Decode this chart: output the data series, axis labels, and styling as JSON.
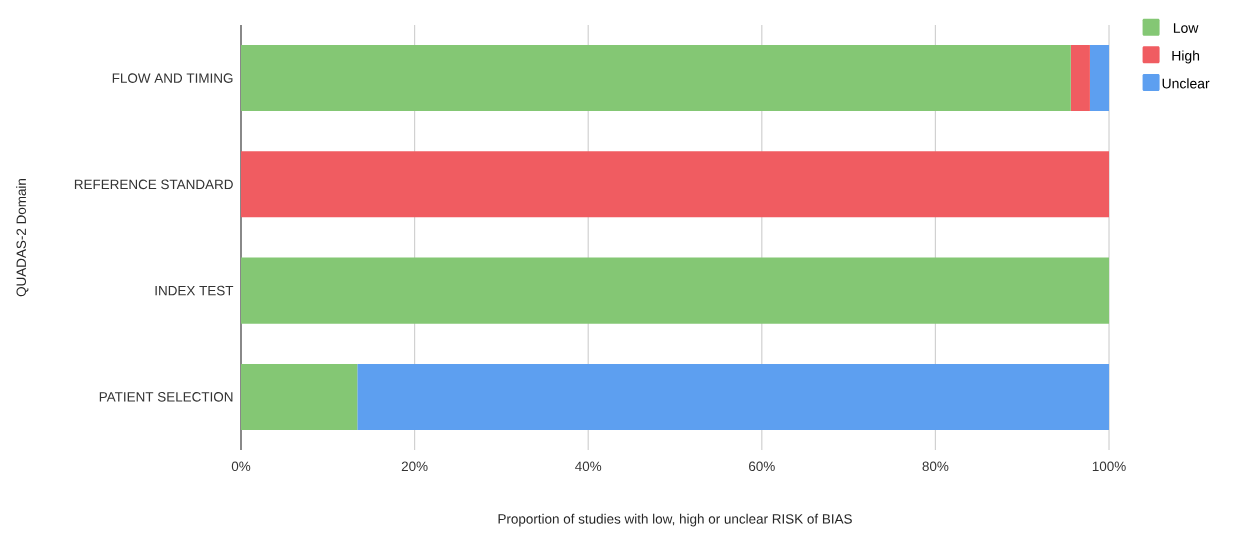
{
  "chart_data": {
    "type": "bar",
    "orientation": "horizontal",
    "stacked": true,
    "xlabel": "Proportion of studies with low, high or unclear RISK of BIAS",
    "ylabel": "QUADAS-2 Domain",
    "categories": [
      "FLOW AND TIMING",
      "REFERENCE STANDARD",
      "INDEX TEST",
      "PATIENT SELECTION"
    ],
    "series": [
      {
        "name": "Low",
        "color": "#84c774",
        "values": [
          95.6,
          0,
          100,
          13.4
        ]
      },
      {
        "name": "High",
        "color": "#f05c61",
        "values": [
          2.2,
          100,
          0,
          0
        ]
      },
      {
        "name": "Unclear",
        "color": "#5d9ff0",
        "values": [
          2.2,
          0,
          0,
          86.6
        ]
      }
    ],
    "xlim": [
      0,
      100
    ],
    "xticks": [
      {
        "value": 0,
        "label": "0%"
      },
      {
        "value": 20,
        "label": "20%"
      },
      {
        "value": 40,
        "label": "40%"
      },
      {
        "value": 60,
        "label": "60%"
      },
      {
        "value": 80,
        "label": "80%"
      },
      {
        "value": 100,
        "label": "100%"
      }
    ],
    "grid": "x",
    "legend": "top right"
  }
}
